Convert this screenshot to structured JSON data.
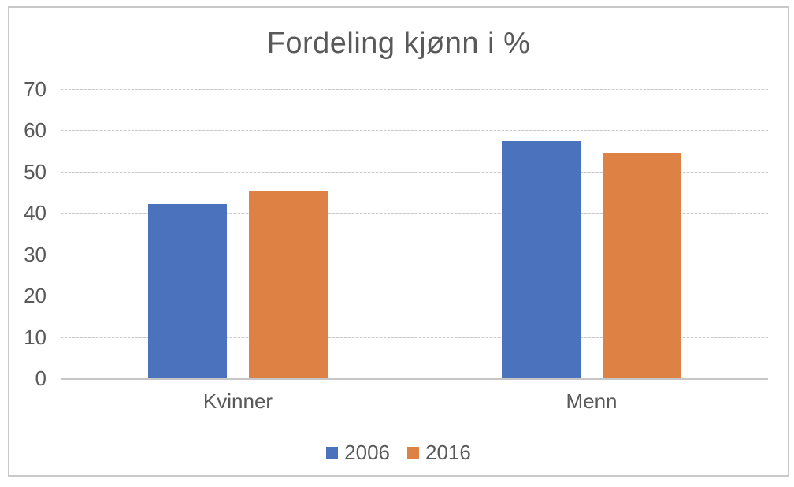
{
  "chart_data": {
    "type": "bar",
    "title": "Fordeling kjønn i %",
    "categories": [
      "Kvinner",
      "Menn"
    ],
    "series": [
      {
        "name": "2006",
        "color": "#4a72bd",
        "values": [
          42.2,
          57.5
        ]
      },
      {
        "name": "2016",
        "color": "#dd8244",
        "values": [
          45.2,
          54.5
        ]
      }
    ],
    "xlabel": "",
    "ylabel": "",
    "ylim": [
      0,
      70
    ],
    "ytick_step": 10,
    "yticks": [
      0,
      10,
      20,
      30,
      40,
      50,
      60,
      70
    ],
    "grid": true,
    "legend_position": "bottom",
    "text_color": "#595959",
    "grid_color": "#c9c9c9",
    "frame_color": "#c9c9c9",
    "background_color": "#ffffff"
  }
}
